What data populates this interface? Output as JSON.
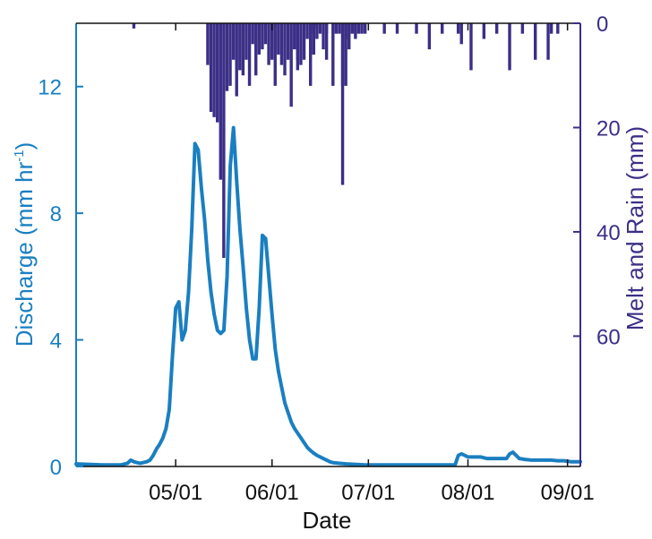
{
  "chart_data": {
    "type": "bar+line",
    "xlabel": "Date",
    "ylabel_left": {
      "main": "Discharge (mm hr",
      "sup": "-1",
      "end": ")"
    },
    "ylabel_right": "Melt and Rain (mm)",
    "x_ticks": [
      {
        "day": 31,
        "label": "05/01"
      },
      {
        "day": 61,
        "label": "06/01"
      },
      {
        "day": 91,
        "label": "07/01"
      },
      {
        "day": 122,
        "label": "08/01"
      },
      {
        "day": 153,
        "label": "09/01"
      }
    ],
    "xlim_day": [
      0,
      157
    ],
    "y_left": {
      "ticks": [
        {
          "v": 0,
          "label": "0"
        },
        {
          "v": 4,
          "label": "4"
        },
        {
          "v": 8,
          "label": "8"
        },
        {
          "v": 12,
          "label": "12"
        }
      ],
      "lim": [
        0,
        14
      ]
    },
    "y_right": {
      "ticks": [
        {
          "v": 0,
          "label": "0"
        },
        {
          "v": 20,
          "label": "20"
        },
        {
          "v": 40,
          "label": "40"
        },
        {
          "v": 60,
          "label": "60"
        }
      ],
      "lim": [
        0,
        85
      ]
    },
    "colors": {
      "discharge": "#1a7fc1",
      "melt": "#3b2f87",
      "axis_left": "#1a7fc1",
      "axis_right": "#3b2f87"
    },
    "melt_rain": {
      "day": [
        18,
        19,
        20,
        21,
        22,
        23,
        24,
        25,
        26,
        27,
        28,
        29,
        30,
        31,
        32,
        33,
        34,
        35,
        36,
        37,
        38,
        39,
        40,
        41,
        42,
        43,
        44,
        45,
        46,
        47,
        48,
        49,
        50,
        51,
        52,
        53,
        54,
        55,
        56,
        57,
        58,
        59,
        60,
        61,
        62,
        63,
        64,
        65,
        66,
        67,
        68,
        69,
        70,
        71,
        72,
        73,
        74,
        75,
        76,
        77,
        78,
        79,
        80,
        81,
        82,
        83,
        84,
        85,
        86,
        87,
        88,
        89,
        90,
        91,
        92,
        93,
        94,
        95,
        96,
        97,
        98,
        99,
        100,
        101,
        102,
        103,
        104,
        105,
        106,
        107,
        108,
        109,
        110,
        111,
        112,
        113,
        114,
        115,
        116,
        117,
        118,
        119,
        120,
        121,
        122,
        123,
        124,
        125,
        126,
        127,
        128,
        129,
        130,
        131,
        132,
        133,
        134,
        135,
        136,
        137,
        138,
        139,
        140,
        141,
        142,
        143,
        144,
        145,
        146,
        147,
        148,
        149,
        150,
        151,
        152,
        153,
        154,
        155
      ],
      "values": [
        1,
        0,
        0,
        0,
        0,
        0,
        0,
        0,
        0,
        0,
        0,
        0,
        0,
        0,
        0,
        0,
        0,
        0,
        0,
        0,
        0,
        0,
        0,
        8,
        17,
        18,
        19,
        30,
        45,
        13,
        12,
        7,
        14,
        9,
        10,
        7,
        12,
        4,
        10,
        6,
        5,
        4,
        8,
        7,
        12,
        6,
        8,
        10,
        7,
        16,
        5,
        9,
        8,
        7,
        3,
        2,
        6,
        1,
        0,
        5,
        7,
        0,
        12,
        0,
        2,
        31,
        3,
        0,
        0,
        2,
        2,
        0,
        0,
        0,
        0,
        0,
        0,
        0,
        0,
        0,
        0,
        0,
        0,
        0,
        0,
        0,
        0,
        0,
        0,
        0,
        0,
        0,
        0,
        0,
        0,
        0,
        0,
        0,
        0,
        0,
        0,
        0,
        0,
        0,
        0,
        0,
        0,
        0,
        0,
        0,
        0,
        0,
        0,
        0,
        0,
        0,
        0,
        0,
        0,
        0,
        0,
        0,
        0,
        0,
        0,
        0,
        0,
        0,
        0,
        0,
        0,
        0,
        0,
        0,
        0,
        0,
        0,
        0
      ],
      "extra_bars": [
        {
          "day": 69,
          "value": 7
        },
        {
          "day": 73,
          "value": 12
        },
        {
          "day": 74,
          "value": 6
        },
        {
          "day": 75,
          "value": 3
        },
        {
          "day": 76,
          "value": 2
        },
        {
          "day": 78,
          "value": 2
        },
        {
          "day": 81,
          "value": 2
        },
        {
          "day": 83,
          "value": 12
        },
        {
          "day": 84,
          "value": 12
        },
        {
          "day": 85,
          "value": 5
        },
        {
          "day": 86,
          "value": 2
        },
        {
          "day": 87,
          "value": 3
        },
        {
          "day": 89,
          "value": 2
        },
        {
          "day": 90,
          "value": 2
        },
        {
          "day": 96,
          "value": 2
        },
        {
          "day": 100,
          "value": 2
        },
        {
          "day": 106,
          "value": 2
        },
        {
          "day": 110,
          "value": 5
        },
        {
          "day": 114,
          "value": 2
        },
        {
          "day": 119,
          "value": 2
        },
        {
          "day": 120,
          "value": 4
        },
        {
          "day": 123,
          "value": 9
        },
        {
          "day": 127,
          "value": 3
        },
        {
          "day": 131,
          "value": 2
        },
        {
          "day": 135,
          "value": 9
        },
        {
          "day": 139,
          "value": 2
        },
        {
          "day": 143,
          "value": 7
        },
        {
          "day": 147,
          "value": 7
        },
        {
          "day": 148,
          "value": 2
        },
        {
          "day": 150,
          "value": 2
        }
      ]
    },
    "discharge": {
      "day": [
        0,
        8,
        14,
        16,
        17,
        18,
        19,
        20,
        22,
        23,
        24,
        25,
        26,
        27,
        28,
        29,
        30,
        31,
        32,
        33,
        34,
        35,
        36,
        37,
        38,
        39,
        40,
        41,
        42,
        43,
        44,
        45,
        46,
        47,
        48,
        49,
        50,
        51,
        52,
        53,
        54,
        55,
        56,
        57,
        58,
        59,
        60,
        61,
        62,
        63,
        64,
        65,
        66,
        67,
        68,
        69,
        70,
        71,
        72,
        73,
        74,
        75,
        76,
        77,
        78,
        79,
        80,
        82,
        84,
        86,
        88,
        90,
        92,
        94,
        96,
        98,
        100,
        102,
        104,
        106,
        108,
        110,
        112,
        114,
        116,
        118,
        119,
        120,
        121,
        122,
        124,
        126,
        128,
        130,
        132,
        134,
        135,
        136,
        137,
        138,
        140,
        142,
        144,
        146,
        148,
        150,
        152,
        154,
        157
      ],
      "values": [
        0.08,
        0.05,
        0.05,
        0.1,
        0.2,
        0.15,
        0.12,
        0.1,
        0.15,
        0.2,
        0.35,
        0.55,
        0.7,
        0.9,
        1.2,
        1.8,
        3.5,
        5.0,
        5.2,
        4.0,
        4.3,
        5.5,
        7.5,
        10.2,
        10.0,
        8.8,
        7.8,
        6.5,
        5.5,
        4.8,
        4.3,
        4.2,
        4.3,
        6.0,
        9.5,
        10.7,
        9.0,
        7.5,
        6.3,
        5.0,
        4.0,
        3.4,
        3.4,
        5.0,
        7.3,
        7.2,
        6.0,
        4.8,
        3.7,
        3.0,
        2.5,
        2.0,
        1.7,
        1.4,
        1.2,
        1.05,
        0.9,
        0.75,
        0.6,
        0.5,
        0.42,
        0.35,
        0.3,
        0.25,
        0.2,
        0.15,
        0.12,
        0.1,
        0.08,
        0.07,
        0.06,
        0.05,
        0.05,
        0.05,
        0.05,
        0.05,
        0.05,
        0.05,
        0.05,
        0.05,
        0.05,
        0.05,
        0.05,
        0.05,
        0.05,
        0.05,
        0.35,
        0.4,
        0.35,
        0.3,
        0.3,
        0.3,
        0.25,
        0.25,
        0.25,
        0.25,
        0.4,
        0.45,
        0.35,
        0.25,
        0.22,
        0.2,
        0.2,
        0.2,
        0.2,
        0.18,
        0.18,
        0.15,
        0.15
      ]
    }
  }
}
